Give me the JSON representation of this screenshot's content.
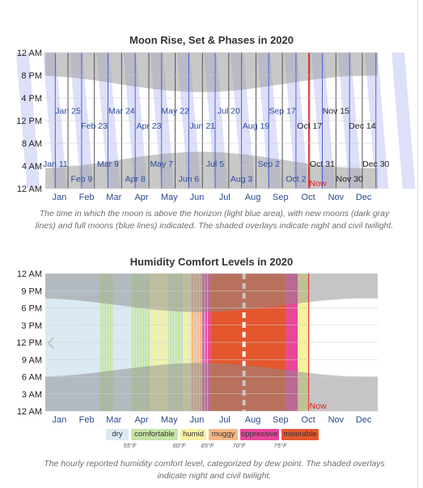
{
  "chart_data": [
    {
      "type": "area",
      "title": "Moon Rise, Set & Phases in 2020",
      "year": 2020,
      "y_ticks": [
        "12 AM",
        "8 PM",
        "4 PM",
        "12 PM",
        "8 AM",
        "4 AM",
        "12 AM"
      ],
      "x_ticks": [
        "Jan",
        "Feb",
        "Mar",
        "Apr",
        "May",
        "Jun",
        "Jul",
        "Aug",
        "Sep",
        "Oct",
        "Nov",
        "Dec"
      ],
      "new_moon_labels": [
        {
          "text": "Jan 25",
          "day": 25,
          "row": "upper"
        },
        {
          "text": "Feb 23",
          "day": 54,
          "row": "upper2"
        },
        {
          "text": "Mar 24",
          "day": 84,
          "row": "upper"
        },
        {
          "text": "Apr 23",
          "day": 114,
          "row": "upper2"
        },
        {
          "text": "May 22",
          "day": 143,
          "row": "upper"
        },
        {
          "text": "Jun 21",
          "day": 173,
          "row": "upper2"
        },
        {
          "text": "Jul 20",
          "day": 202,
          "row": "upper"
        },
        {
          "text": "Aug 19",
          "day": 232,
          "row": "upper2"
        },
        {
          "text": "Sep 17",
          "day": 261,
          "row": "upper"
        },
        {
          "text": "Oct 17",
          "day": 291,
          "row": "upper2"
        },
        {
          "text": "Nov 15",
          "day": 320,
          "row": "upper"
        },
        {
          "text": "Dec 14",
          "day": 349,
          "row": "upper2"
        }
      ],
      "full_moon_labels": [
        {
          "text": "Jan 11",
          "day": 11,
          "row": "lower"
        },
        {
          "text": "Feb 9",
          "day": 40,
          "row": "lower2"
        },
        {
          "text": "Mar 9",
          "day": 69,
          "row": "lower"
        },
        {
          "text": "Apr 8",
          "day": 99,
          "row": "lower2"
        },
        {
          "text": "May 7",
          "day": 128,
          "row": "lower"
        },
        {
          "text": "Jun 6",
          "day": 158,
          "row": "lower2"
        },
        {
          "text": "Jul 5",
          "day": 187,
          "row": "lower"
        },
        {
          "text": "Aug 3",
          "day": 216,
          "row": "lower2"
        },
        {
          "text": "Sep 2",
          "day": 246,
          "row": "lower"
        },
        {
          "text": "Oct 2",
          "day": 276,
          "row": "lower2"
        },
        {
          "text": "Oct 31",
          "day": 305,
          "row": "lower"
        },
        {
          "text": "Nov 30",
          "day": 335,
          "row": "lower2"
        },
        {
          "text": "Dec 30",
          "day": 364,
          "row": "lower"
        }
      ],
      "now_label": "Now",
      "now_day": 290,
      "caption": "The time in which the moon is above the horizon (light blue area), with new moons (dark gray lines) and full moons (blue lines) indicated. The shaded overlays indicate night and civil twilight."
    },
    {
      "type": "heatmap",
      "title": "Humidity Comfort Levels in 2020",
      "y_ticks": [
        "12 AM",
        "9 PM",
        "6 PM",
        "3 PM",
        "12 PM",
        "9 AM",
        "6 AM",
        "3 AM",
        "12 AM"
      ],
      "x_ticks": [
        "Jan",
        "Feb",
        "Mar",
        "Apr",
        "May",
        "Jun",
        "Jul",
        "Aug",
        "Sep",
        "Oct",
        "Nov",
        "Dec"
      ],
      "legend": [
        {
          "label": "dry",
          "color": "#dbe9f2"
        },
        {
          "label": "comfortable",
          "color": "#c6e4a6"
        },
        {
          "label": "humid",
          "color": "#f6f2a0"
        },
        {
          "label": "muggy",
          "color": "#f7b784"
        },
        {
          "label": "oppressive",
          "color": "#e8479b"
        },
        {
          "label": "miserable",
          "color": "#e4572e"
        }
      ],
      "thresholds": [
        "55°F",
        "60°F",
        "65°F",
        "70°F",
        "75°F"
      ],
      "now_label": "Now",
      "now_day": 290,
      "caption": "The hourly reported humidity comfort level, categorized by dew point. The shaded overlays indicate night and civil twilight."
    }
  ]
}
